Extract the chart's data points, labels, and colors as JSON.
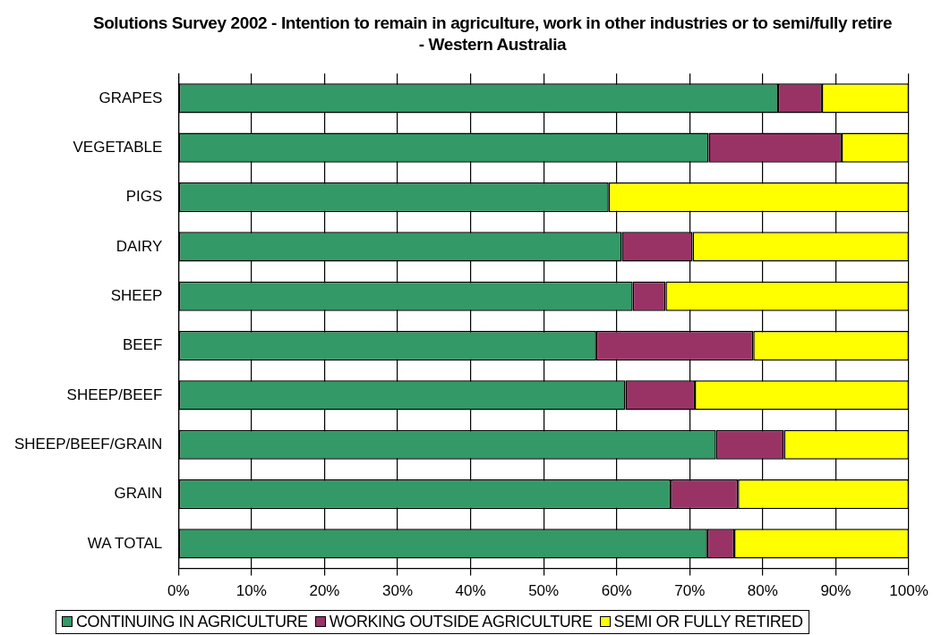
{
  "chart_data": {
    "type": "bar",
    "orientation": "horizontal",
    "stacked": true,
    "title": "Solutions Survey 2002 - Intention to remain in agriculture, work in other industries or to semi/fully retire - Western Australia",
    "categories": [
      "GRAPES",
      "VEGETABLE",
      "PIGS",
      "DAIRY",
      "SHEEP",
      "BEEF",
      "SHEEP/BEEF",
      "SHEEP/BEEF/GRAIN",
      "GRAIN",
      "WA TOTAL"
    ],
    "series": [
      {
        "name": "CONTINUING IN AGRICULTURE",
        "color": "#339966",
        "values": [
          82.1,
          72.6,
          58.9,
          60.7,
          62.2,
          57.2,
          61.2,
          73.6,
          67.4,
          72.4
        ]
      },
      {
        "name": "WORKING OUTSIDE AGRICULTURE",
        "color": "#993366",
        "values": [
          6,
          18.2,
          0,
          9.7,
          4.5,
          21.5,
          9.5,
          9.3,
          9.2,
          3.7
        ]
      },
      {
        "name": "SEMI OR FULLY RETIRED",
        "color": "#ffff00",
        "values": [
          11.9,
          9.2,
          41.1,
          29.6,
          33.3,
          21.3,
          29.3,
          17.1,
          23.4,
          23.9
        ]
      }
    ],
    "xlim": [
      0,
      100
    ],
    "xticks": [
      {
        "value": 0,
        "label": "0%"
      },
      {
        "value": 10,
        "label": "10%"
      },
      {
        "value": 20,
        "label": "20%"
      },
      {
        "value": 30,
        "label": "30%"
      },
      {
        "value": 40,
        "label": "40%"
      },
      {
        "value": 50,
        "label": "50%"
      },
      {
        "value": 60,
        "label": "60%"
      },
      {
        "value": 70,
        "label": "70%"
      },
      {
        "value": 80,
        "label": "80%"
      },
      {
        "value": 90,
        "label": "90%"
      },
      {
        "value": 100,
        "label": "100%"
      }
    ],
    "grid": "x",
    "legend": "bottom"
  }
}
